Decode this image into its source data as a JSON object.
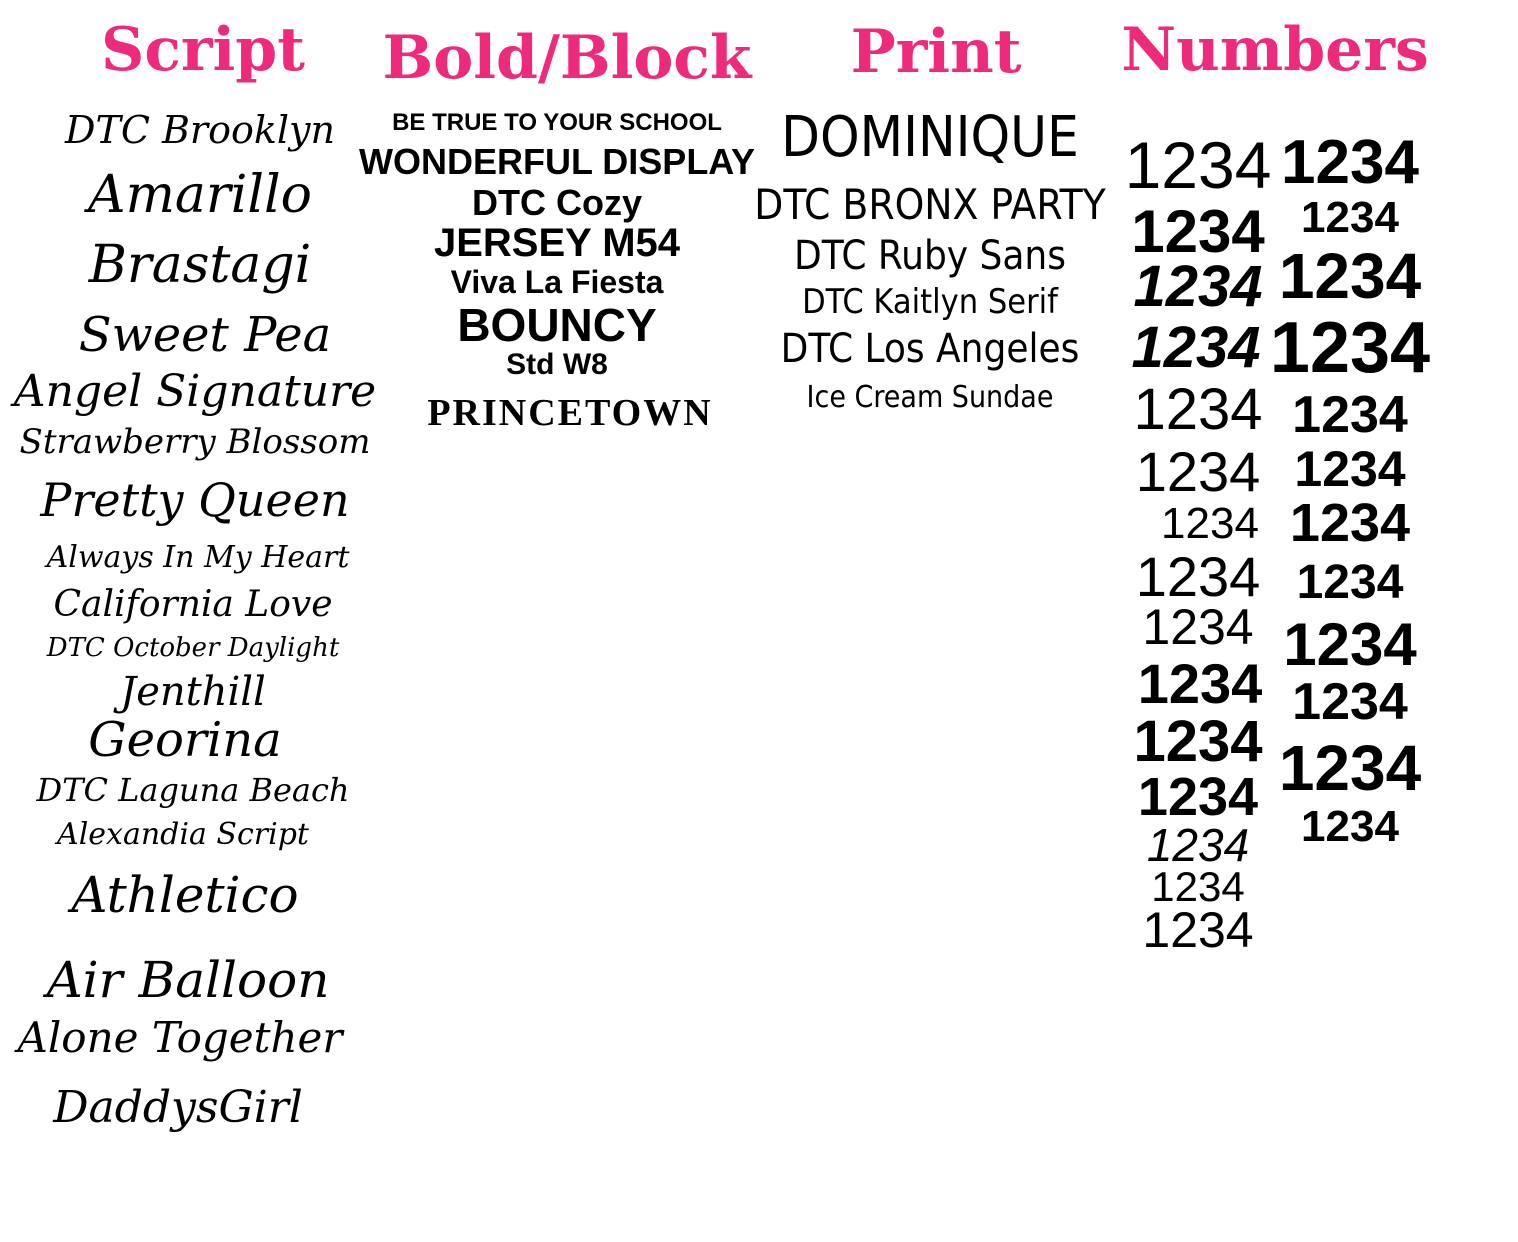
{
  "accent_color": "#ee2a7b",
  "columns": [
    {
      "id": "script",
      "heading": "Script",
      "items": [
        "DTC Brooklyn",
        "Amarillo",
        "Brastagi",
        "Sweet Pea",
        "Angel Signature",
        "Strawberry Blossom",
        "Pretty Queen",
        "Always In My Heart",
        "California Love",
        "DTC October Daylight",
        "Jenthill",
        "Georina",
        "DTC Laguna Beach",
        "Alexandia Script",
        "Athletico",
        "Air Balloon",
        "Alone Together",
        "DaddysGirl"
      ]
    },
    {
      "id": "bold",
      "heading": "Bold/Block",
      "items": [
        "BE TRUE TO YOUR SCHOOL",
        "WONDERFUL DISPLAY",
        "DTC Cozy",
        "JERSEY M54",
        "Viva La Fiesta",
        "BOUNCY",
        "Std W8",
        "PRINCETOWN"
      ]
    },
    {
      "id": "print",
      "heading": "Print",
      "items": [
        "DOMINIQUE",
        "DTC BRONX PARTY",
        "DTC Ruby Sans",
        "DTC Kaitlyn Serif",
        "DTC Los Angeles",
        "Ice Cream Sundae"
      ]
    },
    {
      "id": "numbers",
      "heading": "Numbers",
      "left": [
        "1234",
        "1234",
        "1234",
        "1234",
        "1234",
        "1234",
        "1234",
        "1234",
        "1234",
        "1234",
        "1234",
        "1234",
        "1234",
        "1234",
        "1234"
      ],
      "right": [
        "1234",
        "1234",
        "1234",
        "1234",
        "1234",
        "1234",
        "1234",
        "1234",
        "1234",
        "1234",
        "1234",
        "1234"
      ]
    }
  ]
}
